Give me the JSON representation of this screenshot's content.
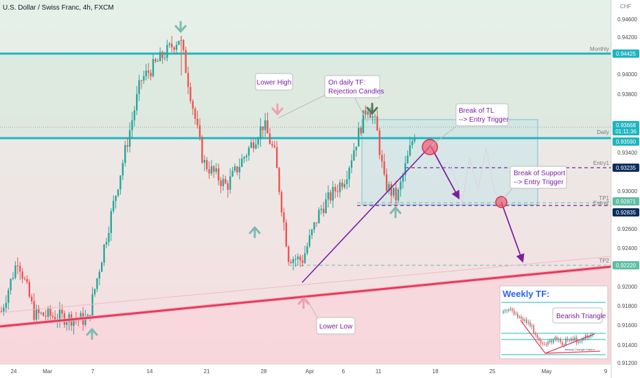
{
  "symbol_title": "U.S. Dollar / Swiss Franc, 4h, FXCM",
  "currency_label": "CHF",
  "colors": {
    "bg_top": "#e3f1e8",
    "bg_bottom": "#f7dde1",
    "bull": "#26a69a",
    "bear": "#ef5350",
    "level_line": "#1fb4c1",
    "trendline": "#e63a5c",
    "purple": "#7b1fa2",
    "tag_blue": "#0b2e5c",
    "tag_cyan": "#1fb4c1",
    "tag_green": "#5ebea3",
    "arrow_teal": "#7fb9b3",
    "arrow_pink": "#f0a0ac",
    "arrow_dark": "#4d7a62"
  },
  "chart_data": {
    "type": "candlestick",
    "title": "U.S. Dollar / Swiss Franc, 4h, FXCM",
    "y_unit": "CHF",
    "ylim": [
      0.912,
      0.948
    ],
    "y_ticks": [
      "0.94600",
      "0.94200",
      "0.94000",
      "0.93800",
      "0.93400",
      "0.93000",
      "0.92600",
      "0.92400",
      "0.92000",
      "0.91800",
      "0.91600",
      "0.91400",
      "0.91200"
    ],
    "x_ticks": [
      "24",
      "Mar",
      "7",
      "14",
      "21",
      "28",
      "Apr",
      "6",
      "11",
      "18",
      "25",
      "May",
      "9"
    ],
    "swing_path": [
      [
        "24",
        0.9175
      ],
      [
        "Mar",
        0.923
      ],
      [
        "Mar",
        0.9172
      ],
      [
        "7",
        0.9166
      ],
      [
        "14",
        0.9415
      ],
      [
        "16",
        0.946
      ],
      [
        "21",
        0.933
      ],
      [
        "26",
        0.9305
      ],
      [
        "28",
        0.937
      ],
      [
        "30",
        0.9338
      ],
      [
        "31",
        0.9232
      ],
      [
        "Apr",
        0.9228
      ],
      [
        "4",
        0.928
      ],
      [
        "6",
        0.9315
      ],
      [
        "8",
        0.939
      ],
      [
        "10",
        0.9367
      ],
      [
        "11",
        0.9308
      ],
      [
        "13",
        0.9292
      ],
      [
        "15",
        0.937
      ]
    ],
    "price_levels": [
      {
        "name": "Monthly",
        "price": 0.94425,
        "tag": "0.94425"
      },
      {
        "name": "Daily",
        "price": 0.9359,
        "tag": "0.93590"
      },
      {
        "name": "Entry1",
        "price": 0.93235,
        "tag": "0.93235"
      },
      {
        "name": "TP1",
        "price": 0.92871,
        "tag": "0.92871"
      },
      {
        "name": "Entry2",
        "price": 0.92835,
        "tag": "0.92835"
      },
      {
        "name": "TP2",
        "price": 0.9222,
        "tag": "0.92220"
      }
    ],
    "current_price": {
      "price": "0.93668",
      "countdown": "01:11:36"
    }
  },
  "annotations": {
    "lower_high": "Lower High",
    "daily_tf_line1": "On daily TF:",
    "daily_tf_line2": "Rejection Candles",
    "break_tl_line1": "Break of TL",
    "break_tl_line2": "--> Entry Trigger",
    "break_support_line1": "Break of Support",
    "break_support_line2": "--> Entry Trigger",
    "lower_low": "Lower Low"
  },
  "weekly_inset": {
    "title": "Weekly TF:",
    "label": "Bearish Triangle",
    "footer": "Bearish Triangle Pattern"
  }
}
